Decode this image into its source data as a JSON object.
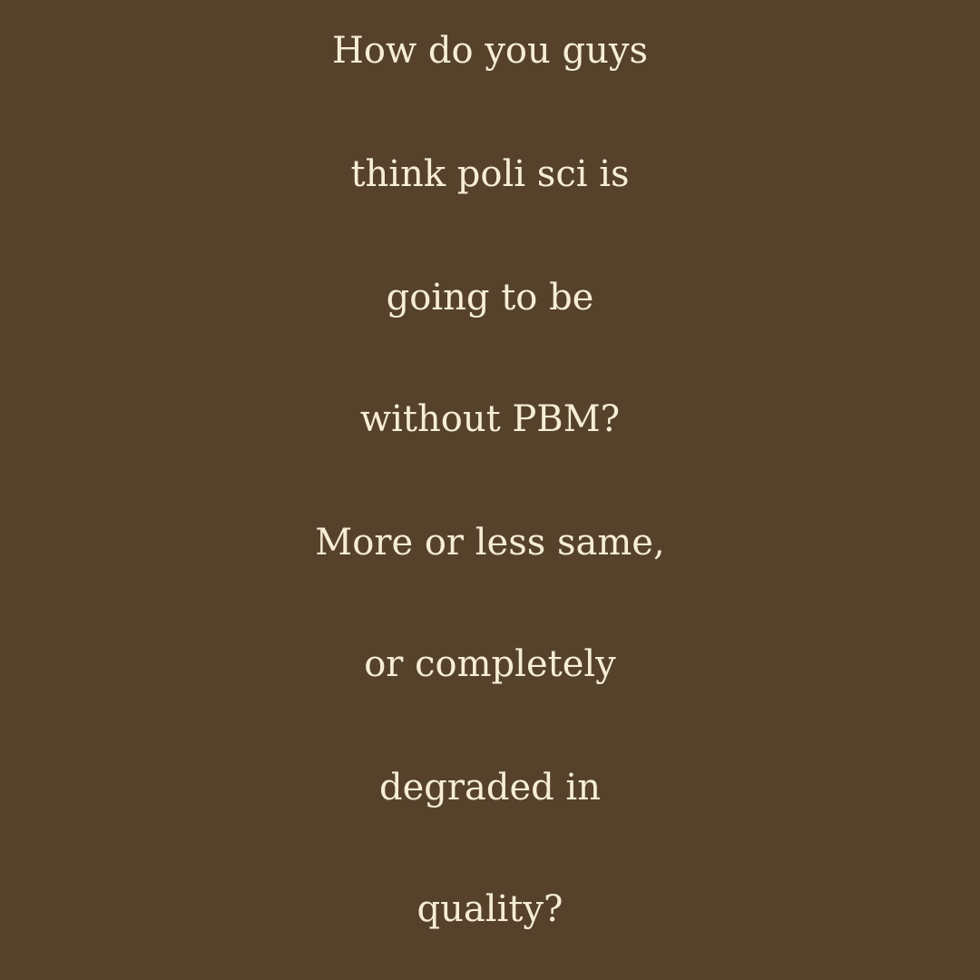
{
  "background_color": "#56422b",
  "text_color": "#f6edd6",
  "post": {
    "lines": [
      "How do you guys",
      "think poli sci is",
      "going to be",
      "without PBM?",
      "More or less same,",
      "or completely",
      "degraded in",
      "quality?"
    ]
  }
}
